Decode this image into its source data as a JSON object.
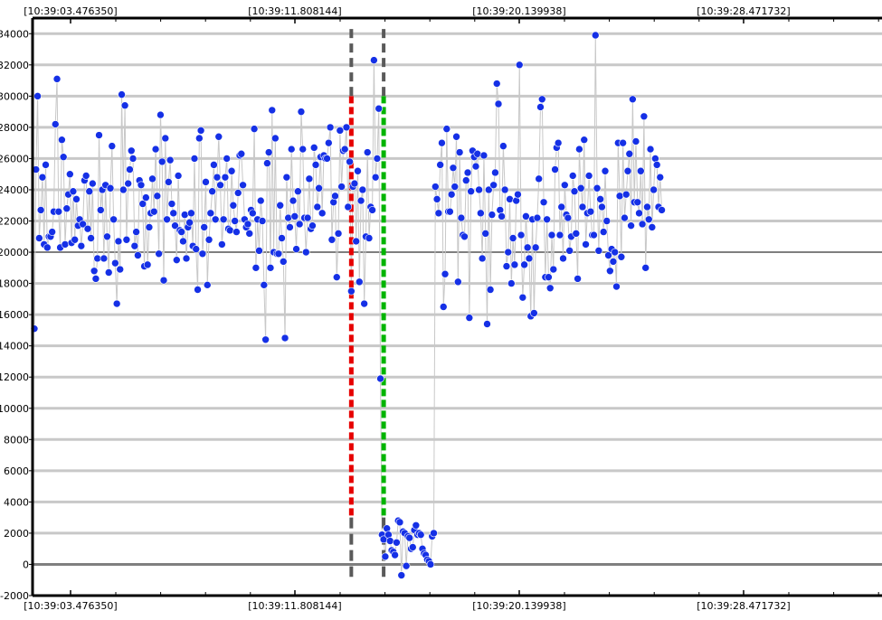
{
  "chart_data": {
    "type": "scatter",
    "title": "",
    "xlabel": "",
    "ylabel": "",
    "ylim": [
      -2000,
      35000
    ],
    "y_ticks": [
      -2000,
      0,
      2000,
      4000,
      6000,
      8000,
      10000,
      12000,
      14000,
      16000,
      18000,
      20000,
      22000,
      24000,
      26000,
      28000,
      30000,
      32000,
      34000
    ],
    "x_tick_labels": [
      "[10:39:03.476350]",
      "[10:39:11.808144]",
      "[10:39:20.139938]",
      "[10:39:28.471732]"
    ],
    "grid": true,
    "points_connected": true,
    "colors": {
      "point": "#1530e6",
      "line": "#c8c8c8",
      "grid": "#c8c8c8",
      "zero_line": "#7f7f7f",
      "ref_line_20000": "#7f7f7f",
      "marker_start": "#e60000",
      "marker_end": "#00b400",
      "marker_bracket": "#5a5a5a"
    },
    "markers": [
      {
        "label": "start",
        "index": 196,
        "y_from": 0,
        "y_to": 30000
      },
      {
        "label": "end",
        "index": 216,
        "y_from": 0,
        "y_to": 30000
      }
    ],
    "series": [
      {
        "values": [
          15100,
          25300,
          30000,
          20900,
          22700,
          24800,
          20500,
          25600,
          20300,
          21000,
          21000,
          21300,
          22600,
          28200,
          31100,
          22600,
          20300,
          27200,
          26100,
          20500,
          22800,
          23700,
          25000,
          20600,
          23900,
          20800,
          23400,
          21700,
          22100,
          20400,
          21800,
          24600,
          24900,
          21500,
          23900,
          20900,
          24400,
          18800,
          18300,
          19600,
          27500,
          22700,
          24000,
          19600,
          24300,
          21000,
          18700,
          24100,
          26800,
          22100,
          19300,
          16700,
          20700,
          18900,
          30100,
          24000,
          29400,
          20800,
          24400,
          25300,
          26500,
          26000,
          20400,
          21300,
          19800,
          24600,
          24300,
          23100,
          19100,
          23500,
          19200,
          21600,
          22500,
          24700,
          22600,
          26600,
          23600,
          19900,
          28800,
          25800,
          18200,
          27300,
          22100,
          24500,
          25900,
          23100,
          22500,
          21700,
          19500,
          24900,
          21400,
          21300,
          20700,
          22400,
          19600,
          21600,
          21900,
          22500,
          20400,
          26000,
          20200,
          17600,
          27300,
          27800,
          19900,
          21600,
          24500,
          17900,
          20800,
          22500,
          23900,
          25600,
          22100,
          24800,
          27400,
          24300,
          20500,
          22100,
          24800,
          26000,
          21500,
          21400,
          25200,
          23000,
          22000,
          21300,
          23800,
          26200,
          26300,
          24300,
          22100,
          21600,
          21800,
          21200,
          22700,
          22500,
          27900,
          19000,
          22100,
          20100,
          23300,
          22000,
          17900,
          14400,
          25700,
          26400,
          19000,
          29100,
          20000,
          27300,
          19900,
          19900,
          23000,
          20900,
          19400,
          14500,
          24800,
          22200,
          21600,
          26600,
          23300,
          22300,
          20200,
          23900,
          21800,
          29000,
          26600,
          22200,
          20000,
          22200,
          24700,
          21500,
          21700,
          26700,
          25600,
          22900,
          24100,
          26100,
          22500,
          26200,
          26000,
          26000,
          27000,
          28000,
          20800,
          23200,
          23600,
          18400,
          21200,
          27800,
          24200,
          26500,
          26600,
          28000,
          22900,
          25800,
          17500,
          24200,
          24400,
          20700,
          25200,
          18100,
          23300,
          24000,
          16700,
          21000,
          26400,
          20900,
          22900,
          22700,
          32300,
          24800,
          26000,
          29200,
          11900,
          1900,
          1600,
          500,
          2300,
          1900,
          1500,
          900,
          800,
          600,
          1400,
          2800,
          2700,
          -700,
          2100,
          2000,
          -100,
          1800,
          1700,
          1000,
          1100,
          2200,
          2500,
          1900,
          2000,
          1900,
          1000,
          700,
          600,
          300,
          200,
          0,
          1800,
          2000,
          24200,
          23400,
          22500,
          25600,
          27000,
          16500,
          18600,
          27900,
          22600,
          22600,
          23700,
          25400,
          24200,
          27400,
          18100,
          26400,
          22200,
          21100,
          21000,
          24600,
          25100,
          15800,
          23900,
          26500,
          26100,
          25500,
          26300,
          24000,
          22500,
          19600,
          26200,
          21200,
          15400,
          24000,
          17600,
          22400,
          24300,
          25100,
          30800,
          29500,
          22700,
          22300,
          26800,
          24000,
          19100,
          20000,
          23400,
          18000,
          20900,
          19200,
          23300,
          23700,
          32000,
          21100,
          17100,
          19200,
          22300,
          20300,
          19600,
          15900,
          22100,
          16100,
          20300,
          22200,
          24700,
          29300,
          29800,
          23200,
          18400,
          22100,
          18400,
          17700,
          21100,
          18900,
          25300,
          26700,
          27000,
          21100,
          22900,
          19600,
          24300,
          22400,
          22200,
          20100,
          21000,
          24900,
          23900,
          21200,
          18300,
          26600,
          24100,
          22900,
          27200,
          20500,
          22500,
          24900,
          22600,
          21100,
          21100,
          33900,
          24100,
          20100,
          23400,
          22900,
          21300,
          25200,
          22000,
          19800,
          18800,
          20200,
          19400,
          20000,
          17800,
          27000,
          23600,
          19700,
          27000,
          22200,
          23700,
          25200,
          26300,
          21700,
          29800,
          23200,
          27100,
          23200,
          22500,
          25200,
          21800,
          28700,
          19000,
          22900,
          22100,
          26600,
          21600,
          24000,
          26000,
          25600,
          22900,
          24800,
          22700
        ]
      }
    ]
  }
}
